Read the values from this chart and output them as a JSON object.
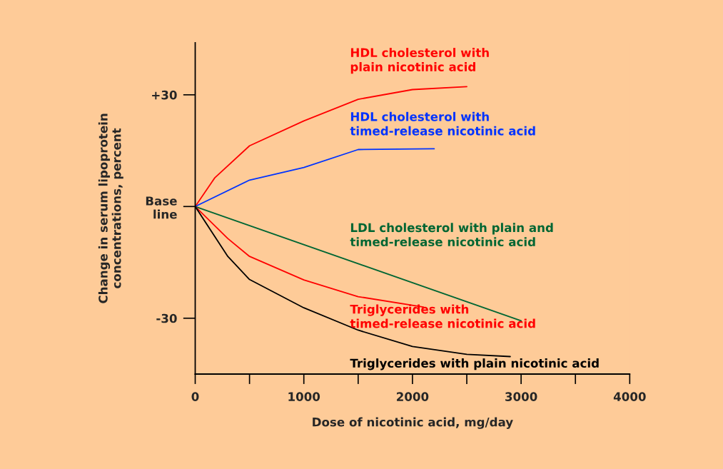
{
  "chart_data": {
    "type": "line",
    "xlabel": "Dose of nicotinic acid, mg/day",
    "ylabel": "Change in serum lipoprotein\nconcentrations, percent",
    "xlim": [
      0,
      4000
    ],
    "ylim": [
      -45,
      44
    ],
    "xticks": [
      0,
      {
        "value": 500,
        "label": null
      },
      1000,
      {
        "value": 1500,
        "label": null
      },
      2000,
      {
        "value": 2500,
        "label": null
      },
      3000,
      {
        "value": 3500,
        "label": null
      },
      4000
    ],
    "yticks": [
      {
        "value": 30,
        "label": "+30"
      },
      {
        "value": 0,
        "label": "Base\nline"
      },
      -30
    ],
    "grid": false,
    "legend": false,
    "marker": "none",
    "line_style": "solid",
    "series": [
      {
        "name": "HDL cholesterol with\nplain nicotinic acid",
        "color": "#ff0000",
        "x": [
          0,
          180,
          500,
          1000,
          1500,
          2000,
          2500
        ],
        "values": [
          0,
          7.7,
          16.3,
          23,
          28.8,
          31.4,
          32.2
        ]
      },
      {
        "name": "HDL cholesterol with\ntimed-release nicotinic acid",
        "color": "#0033ff",
        "x": [
          0,
          500,
          1000,
          1500,
          2200
        ],
        "values": [
          0,
          7.1,
          10.5,
          15.3,
          15.5
        ]
      },
      {
        "name": "LDL cholesterol with plain and\ntimed-release nicotinic acid",
        "color": "#006633",
        "x": [
          0,
          3000
        ],
        "values": [
          0,
          -30.7
        ]
      },
      {
        "name": "Triglycerides with\ntimed-release nicotinic acid",
        "color": "#ff0000",
        "x": [
          0,
          300,
          500,
          1000,
          1500,
          2100
        ],
        "values": [
          0,
          -8.6,
          -13.4,
          -19.7,
          -24.2,
          -27
        ]
      },
      {
        "name": "Triglycerides with plain nicotinic acid",
        "color": "#000000",
        "x": [
          0,
          300,
          500,
          1000,
          1500,
          2000,
          2500,
          2900
        ],
        "values": [
          0,
          -13.4,
          -19.6,
          -27.2,
          -33.2,
          -37.6,
          -39.7,
          -40.3
        ]
      }
    ]
  }
}
